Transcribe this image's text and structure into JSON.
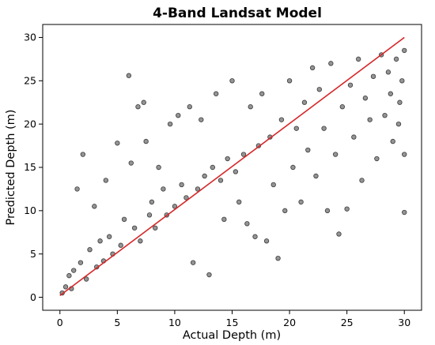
{
  "chart_data": {
    "type": "scatter",
    "title": "4-Band Landsat Model",
    "xlabel": "Actual Depth (m)",
    "ylabel": "Predicted Depth (m)",
    "xlim": [
      -1.5,
      31.5
    ],
    "ylim": [
      -1.5,
      31.5
    ],
    "xticks": [
      0,
      5,
      10,
      15,
      20,
      25,
      30
    ],
    "yticks": [
      0,
      5,
      10,
      15,
      20,
      25,
      30
    ],
    "grid": false,
    "colors": {
      "points": "#000000",
      "fit_line": "#d62728"
    },
    "series": [
      {
        "kind": "scatter",
        "points": [
          [
            0.2,
            0.5
          ],
          [
            0.5,
            1.2
          ],
          [
            0.8,
            2.5
          ],
          [
            1.0,
            1.0
          ],
          [
            1.2,
            3.1
          ],
          [
            1.5,
            12.5
          ],
          [
            1.8,
            4.0
          ],
          [
            2.0,
            16.5
          ],
          [
            2.3,
            2.1
          ],
          [
            2.6,
            5.5
          ],
          [
            3.0,
            10.5
          ],
          [
            3.2,
            3.5
          ],
          [
            3.5,
            6.5
          ],
          [
            3.8,
            4.2
          ],
          [
            4.0,
            13.5
          ],
          [
            4.3,
            7.0
          ],
          [
            4.6,
            5.0
          ],
          [
            5.0,
            17.8
          ],
          [
            5.3,
            6.0
          ],
          [
            5.6,
            9.0
          ],
          [
            6.0,
            25.6
          ],
          [
            6.2,
            15.5
          ],
          [
            6.5,
            8.0
          ],
          [
            6.8,
            22.0
          ],
          [
            7.0,
            6.5
          ],
          [
            7.3,
            22.5
          ],
          [
            7.5,
            18.0
          ],
          [
            7.8,
            9.5
          ],
          [
            8.0,
            11.0
          ],
          [
            8.3,
            8.0
          ],
          [
            8.6,
            15.0
          ],
          [
            9.0,
            12.5
          ],
          [
            9.3,
            9.5
          ],
          [
            9.6,
            20.0
          ],
          [
            10.0,
            10.5
          ],
          [
            10.3,
            21.0
          ],
          [
            10.6,
            13.0
          ],
          [
            11.0,
            11.5
          ],
          [
            11.3,
            22.0
          ],
          [
            11.6,
            4.0
          ],
          [
            12.0,
            12.5
          ],
          [
            12.3,
            20.5
          ],
          [
            12.6,
            14.0
          ],
          [
            13.0,
            2.6
          ],
          [
            13.3,
            15.0
          ],
          [
            13.6,
            23.5
          ],
          [
            14.0,
            13.5
          ],
          [
            14.3,
            9.0
          ],
          [
            14.6,
            16.0
          ],
          [
            15.0,
            25.0
          ],
          [
            15.3,
            14.5
          ],
          [
            15.6,
            11.0
          ],
          [
            16.0,
            16.5
          ],
          [
            16.3,
            8.5
          ],
          [
            16.6,
            22.0
          ],
          [
            17.0,
            7.0
          ],
          [
            17.3,
            17.5
          ],
          [
            17.6,
            23.5
          ],
          [
            18.0,
            6.5
          ],
          [
            18.3,
            18.5
          ],
          [
            18.6,
            13.0
          ],
          [
            19.0,
            4.5
          ],
          [
            19.3,
            20.5
          ],
          [
            19.6,
            10.0
          ],
          [
            20.0,
            25.0
          ],
          [
            20.3,
            15.0
          ],
          [
            20.6,
            19.5
          ],
          [
            21.0,
            11.0
          ],
          [
            21.3,
            22.5
          ],
          [
            21.6,
            17.0
          ],
          [
            22.0,
            26.5
          ],
          [
            22.3,
            14.0
          ],
          [
            22.6,
            24.0
          ],
          [
            23.0,
            19.5
          ],
          [
            23.3,
            10.0
          ],
          [
            23.6,
            27.0
          ],
          [
            24.0,
            16.5
          ],
          [
            24.3,
            7.3
          ],
          [
            24.6,
            22.0
          ],
          [
            25.0,
            10.2
          ],
          [
            25.3,
            24.5
          ],
          [
            25.6,
            18.5
          ],
          [
            26.0,
            27.5
          ],
          [
            26.3,
            13.5
          ],
          [
            26.6,
            23.0
          ],
          [
            27.0,
            20.5
          ],
          [
            27.3,
            25.5
          ],
          [
            27.6,
            16.0
          ],
          [
            28.0,
            28.0
          ],
          [
            28.3,
            21.0
          ],
          [
            28.6,
            26.0
          ],
          [
            29.0,
            18.0
          ],
          [
            29.3,
            27.5
          ],
          [
            29.6,
            22.5
          ],
          [
            30.0,
            9.8
          ],
          [
            30.0,
            16.5
          ],
          [
            30.0,
            28.5
          ],
          [
            29.8,
            25.0
          ],
          [
            29.5,
            20.0
          ],
          [
            28.8,
            23.5
          ]
        ]
      },
      {
        "kind": "line",
        "points": [
          [
            0.0,
            0.2
          ],
          [
            30.0,
            30.0
          ]
        ]
      }
    ]
  }
}
